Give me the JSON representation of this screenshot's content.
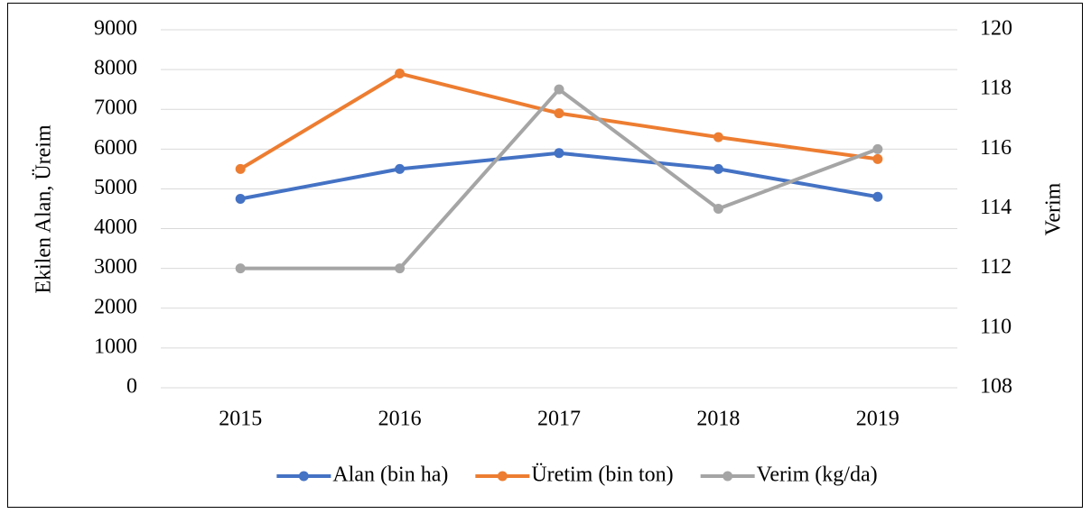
{
  "chart_data": {
    "type": "line",
    "categories": [
      "2015",
      "2016",
      "2017",
      "2018",
      "2019"
    ],
    "y_label": "Ekilen Alan, Üreim",
    "y2_label": "Verim",
    "series": [
      {
        "name": "Alan (bin ha)",
        "color": "#4472c4",
        "values": [
          4750,
          5500,
          5900,
          5500,
          4800
        ]
      },
      {
        "name": "Üretim (bin ton)",
        "color": "#ed7d31",
        "values": [
          5500,
          7900,
          6900,
          6300,
          5750
        ]
      },
      {
        "name": "Verim (kg/da)",
        "color": "#a5a5a5",
        "axis": "y2",
        "values": [
          112,
          112,
          118,
          114,
          116
        ]
      }
    ],
    "ylim": [
      0,
      9000
    ],
    "yticks": [
      0,
      1000,
      2000,
      3000,
      4000,
      5000,
      6000,
      7000,
      8000,
      9000
    ],
    "y2lim": [
      108,
      120
    ],
    "y2ticks": [
      108,
      110,
      112,
      114,
      116,
      118,
      120
    ],
    "grid": true,
    "legend": "bottom"
  }
}
